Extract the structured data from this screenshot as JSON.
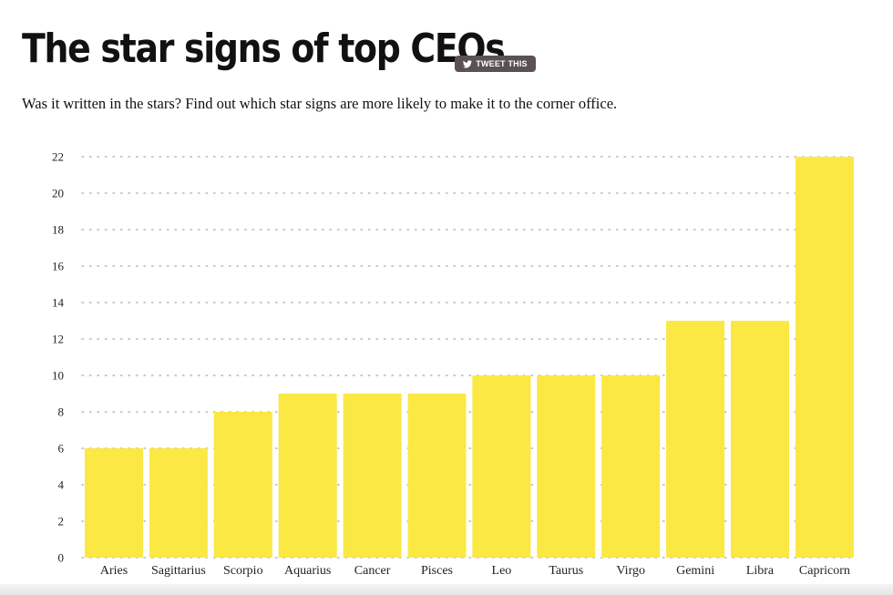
{
  "header": {
    "title": "The star signs of top CEOs",
    "tweet_label": "TWEET THIS",
    "subtitle": "Was it written in the stars? Find out which star signs are more likely to make it to the corner office."
  },
  "colors": {
    "bar": "#fbe842",
    "gridline": "#b8b8b8",
    "text": "#111111",
    "button": "#5a5252"
  },
  "chart_data": {
    "type": "bar",
    "title": "The star signs of top CEOs",
    "xlabel": "",
    "ylabel": "",
    "categories": [
      "Aries",
      "Sagittarius",
      "Scorpio",
      "Aquarius",
      "Cancer",
      "Pisces",
      "Leo",
      "Taurus",
      "Virgo",
      "Gemini",
      "Libra",
      "Capricorn"
    ],
    "values": [
      6,
      6,
      8,
      9,
      9,
      9,
      10,
      10,
      10,
      13,
      13,
      22
    ],
    "ylim": [
      0,
      22
    ],
    "yticks": [
      0,
      2,
      4,
      6,
      8,
      10,
      12,
      14,
      16,
      18,
      20,
      22
    ],
    "grid": true,
    "legend": "none"
  }
}
